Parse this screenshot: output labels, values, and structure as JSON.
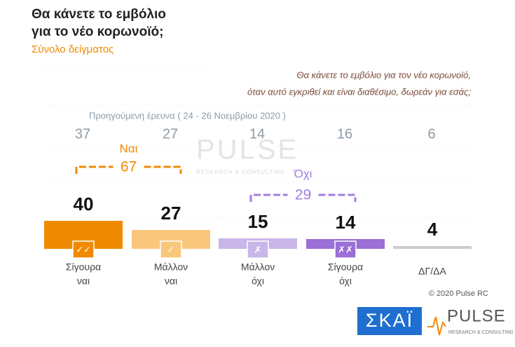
{
  "chart_data": {
    "type": "bar",
    "title": [
      "Θα κάνετε το εμβόλιο",
      "για το νέο κορωνοϊό;"
    ],
    "subtitle": "Σύνολο δείγματος",
    "question": [
      "Θα κάνετε το εμβόλιο για τον νέο κορωνοϊό,",
      "όταν αυτό εγκριθεί και είναι διαθέσιμο, δωρεάν για εσάς;"
    ],
    "categories": [
      [
        "Σίγουρα",
        "ναι"
      ],
      [
        "Μάλλον",
        "ναι"
      ],
      [
        "Μάλλον",
        "όχι"
      ],
      [
        "Σίγουρα",
        "όχι"
      ],
      [
        "ΔΓ/ΔΑ"
      ]
    ],
    "values": [
      40,
      27,
      15,
      14,
      4
    ],
    "colors": [
      "#f08a00",
      "#f9c77c",
      "#c9b6e8",
      "#9a6fd6",
      "#cccccc"
    ],
    "previous": {
      "name": "Προηγούμενη έρευνα  ( 24 - 26  Νοεμβρίου  2020 )",
      "values": [
        37,
        27,
        14,
        16,
        6
      ],
      "color": "#8d9aa6"
    },
    "groups": [
      {
        "name": "Ναι",
        "value": 67,
        "color": "#f08a00"
      },
      {
        "name": "Όχι",
        "value": 29,
        "color": "#a07ee0"
      }
    ],
    "copyright": "© 2020 Pulse RC"
  },
  "branding": {
    "watermark": "PULSE",
    "watermark_sub": "RESEARCH & CONSULTING",
    "channel": "ΣΚΑΪ",
    "company": "PULSE",
    "company_sub": "RESEARCH & CONSULTING"
  }
}
